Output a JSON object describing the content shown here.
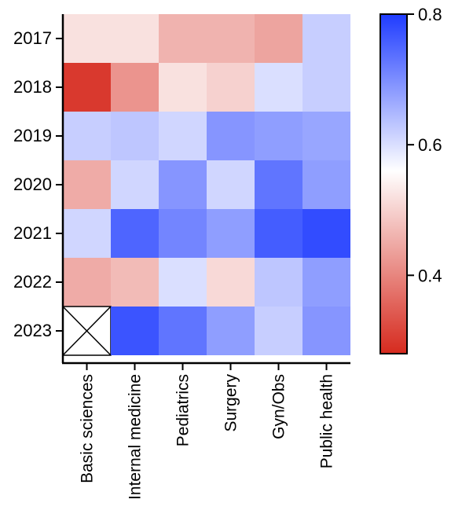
{
  "chart_data": {
    "type": "heatmap",
    "title": "",
    "xlabel": "",
    "ylabel": "",
    "rows": [
      "2017",
      "2018",
      "2019",
      "2020",
      "2021",
      "2022",
      "2023"
    ],
    "columns": [
      "Basic sciences",
      "Internal medicine",
      "Pediatrics",
      "Surgery",
      "Gyn/Obs",
      "Public health"
    ],
    "values": [
      [
        0.52,
        0.52,
        0.46,
        0.46,
        0.44,
        0.62
      ],
      [
        0.3,
        0.42,
        0.52,
        0.5,
        0.6,
        0.62
      ],
      [
        0.62,
        0.63,
        0.61,
        0.69,
        0.68,
        0.67
      ],
      [
        0.45,
        0.61,
        0.69,
        0.61,
        0.73,
        0.68
      ],
      [
        0.61,
        0.75,
        0.71,
        0.68,
        0.76,
        0.78
      ],
      [
        0.45,
        0.47,
        0.6,
        0.51,
        0.63,
        0.68
      ],
      [
        null,
        0.77,
        0.73,
        0.68,
        0.62,
        0.69
      ]
    ],
    "missing_marker": "x-cross",
    "colorbar": {
      "min": 0.28,
      "max": 0.8,
      "ticks": [
        0.4,
        0.6,
        0.8
      ],
      "tick_labels": [
        "0.4",
        "0.6",
        "0.8"
      ],
      "colors": {
        "low": "#d62a1e",
        "mid": "#ffffff",
        "high": "#1f3cff"
      },
      "mid_value": 0.56
    },
    "grid": false,
    "legend": "colorbar-right"
  }
}
